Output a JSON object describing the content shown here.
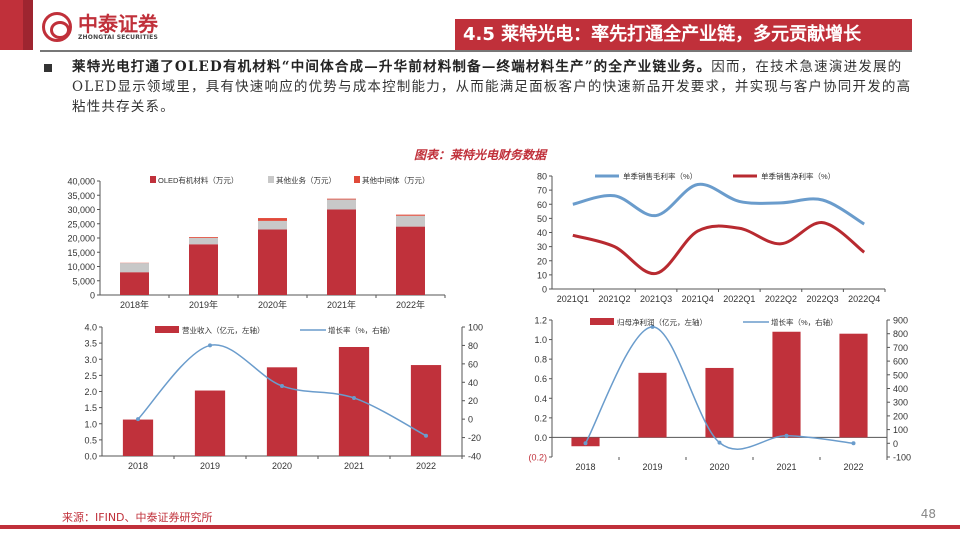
{
  "header": {
    "logo_cn": "中泰证券",
    "logo_en": "ZHONGTAI SECURITIES",
    "title": "4.5 莱特光电：率先打通全产业链，多元贡献增长"
  },
  "body": {
    "bold_text": "莱特光电打通了OLED有机材料“中间体合成—升华前材料制备—终端材料生产”的全产业链业务。",
    "rest_text": "因而，在技术急速演进发展的OLED显示领域里，具有快速响应的优势与成本控制能力，从而能满足面板客户的快速新品开发要求，并实现与客户协同开发的高粘性共存关系。"
  },
  "figure_title": "图表：莱特光电财务数据",
  "footer": {
    "source": "来源：IFIND、中泰证券研究所",
    "page": "48"
  },
  "colors": {
    "red": "#c0313b",
    "gray": "#c8c8c8",
    "orange_red": "#e04a3a",
    "blue": "#6a9ccc",
    "dark_red": "#b82a30"
  },
  "chart_data": [
    {
      "id": "c1",
      "type": "bar",
      "stacked": true,
      "categories": [
        "2018年",
        "2019年",
        "2020年",
        "2021年",
        "2022年"
      ],
      "ylim": [
        0,
        40000
      ],
      "yticks": [
        "0",
        "5,000",
        "10,000",
        "15,000",
        "20,000",
        "25,000",
        "30,000",
        "35,000",
        "40,000"
      ],
      "series": [
        {
          "name": "OLED有机材料（万元）",
          "values": [
            8000,
            17800,
            23000,
            30000,
            24000
          ],
          "color": "#c0313b"
        },
        {
          "name": "其他业务（万元）",
          "values": [
            3200,
            2200,
            3000,
            3500,
            3800
          ],
          "color": "#c8c8c8"
        },
        {
          "name": "其他中间体（万元）",
          "values": [
            100,
            300,
            1000,
            300,
            400
          ],
          "color": "#e04a3a"
        }
      ],
      "legend": "top"
    },
    {
      "id": "c2",
      "type": "line",
      "categories": [
        "2021Q1",
        "2021Q2",
        "2021Q3",
        "2021Q4",
        "2022Q1",
        "2022Q2",
        "2022Q3",
        "2022Q4"
      ],
      "ylim": [
        0,
        80
      ],
      "yticks": [
        "0",
        "10",
        "20",
        "30",
        "40",
        "50",
        "60",
        "70",
        "80"
      ],
      "series": [
        {
          "name": "单季销售毛利率（%）",
          "values": [
            60,
            66,
            52,
            74,
            62,
            61,
            63,
            46
          ],
          "color": "#6a9ccc"
        },
        {
          "name": "单季销售净利率（%）",
          "values": [
            38,
            30,
            11,
            41,
            43,
            32,
            47,
            26
          ],
          "color": "#b82a30"
        }
      ],
      "legend": "top"
    },
    {
      "id": "c3",
      "type": "bar+line",
      "categories": [
        "2018",
        "2019",
        "2020",
        "2021",
        "2022"
      ],
      "ylim": [
        0,
        4
      ],
      "yticks": [
        "0.0",
        "0.5",
        "1.0",
        "1.5",
        "2.0",
        "2.5",
        "3.0",
        "3.5",
        "4.0"
      ],
      "y2lim": [
        -40,
        100
      ],
      "y2ticks": [
        "-40",
        "-20",
        "0",
        "20",
        "40",
        "60",
        "80",
        "100"
      ],
      "series": [
        {
          "name": "营业收入（亿元，左轴）",
          "axis": "left",
          "kind": "bar",
          "values": [
            1.13,
            2.03,
            2.75,
            3.38,
            2.82
          ],
          "color": "#c0313b"
        },
        {
          "name": "增长率（%，右轴）",
          "axis": "right",
          "kind": "line",
          "values": [
            0,
            80,
            36,
            23,
            -18
          ],
          "color": "#6a9ccc"
        }
      ],
      "legend": "top"
    },
    {
      "id": "c4",
      "type": "bar+line",
      "categories": [
        "2018",
        "2019",
        "2020",
        "2021",
        "2022"
      ],
      "ylim": [
        -0.2,
        1.2
      ],
      "yticks": [
        "(0.2)",
        "0.0",
        "0.2",
        "0.4",
        "0.6",
        "0.8",
        "1.0",
        "1.2"
      ],
      "y2lim": [
        -100,
        900
      ],
      "y2ticks": [
        "-100",
        "0",
        "100",
        "200",
        "300",
        "400",
        "500",
        "600",
        "700",
        "800",
        "900"
      ],
      "series": [
        {
          "name": "归母净利润（亿元，左轴）",
          "axis": "left",
          "kind": "bar",
          "values": [
            -0.09,
            0.66,
            0.71,
            1.08,
            1.06
          ],
          "color": "#c0313b"
        },
        {
          "name": "增长率（%，右轴）",
          "axis": "right",
          "kind": "line",
          "values": [
            0,
            850,
            5,
            55,
            0
          ],
          "color": "#6a9ccc"
        }
      ],
      "legend": "top"
    }
  ]
}
